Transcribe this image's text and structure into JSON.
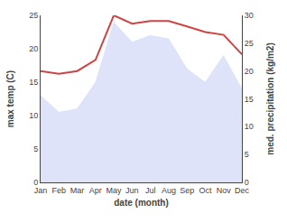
{
  "chart_data": {
    "type": "line",
    "xlabel": "date (month)",
    "ylabel": "max temp (C)",
    "y2label": "med. precipitation (kg/m2)",
    "categories": [
      "Jan",
      "Feb",
      "Mar",
      "Apr",
      "May",
      "Jun",
      "Jul",
      "Aug",
      "Sep",
      "Oct",
      "Nov",
      "Dec"
    ],
    "series": [
      {
        "type": "area",
        "color": "#c8d0f5",
        "values": [
          13,
          10.5,
          11,
          15,
          24,
          21,
          22,
          21.5,
          17,
          15,
          19,
          14
        ]
      },
      {
        "type": "line",
        "color": "#cd4444",
        "axis": "y2",
        "values": [
          20,
          19.5,
          20,
          22,
          30,
          28.5,
          29,
          29,
          28,
          27,
          26.5,
          23
        ]
      }
    ],
    "ylim": [
      0,
      25
    ],
    "yticks": [
      0,
      5,
      10,
      15,
      20,
      25
    ],
    "y2lim": [
      0,
      30
    ],
    "y2ticks": [
      0,
      5,
      10,
      15,
      20,
      25,
      30
    ],
    "grid": false
  }
}
